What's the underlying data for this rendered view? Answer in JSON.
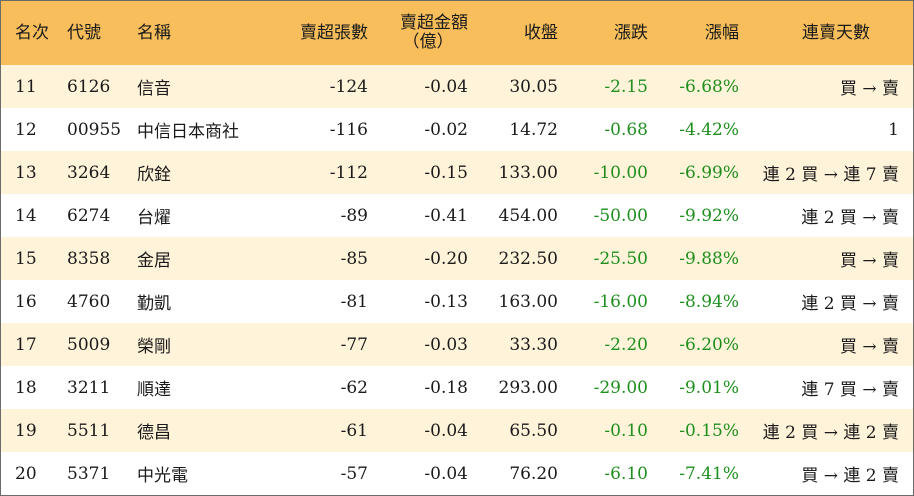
{
  "header": {
    "rank": "名次",
    "code": "代號",
    "name": "名稱",
    "net_sell_lots": "賣超張數",
    "net_sell_amount_line1": "賣超金額",
    "net_sell_amount_line2": "（億）",
    "close": "收盤",
    "change": "漲跌",
    "change_pct": "漲幅",
    "streak": "連賣天數"
  },
  "colors": {
    "header_bg": "#f7be5b",
    "stripe_bg": "#fff3d9",
    "positive_green": "#1e8f1e"
  },
  "rows": [
    {
      "rank": "11",
      "code": "6126",
      "name": "信音",
      "lots": "-124",
      "amount": "-0.04",
      "close": "30.05",
      "change": "-2.15",
      "pct": "-6.68%",
      "streak": "買 → 賣"
    },
    {
      "rank": "12",
      "code": "00955",
      "name": "中信日本商社",
      "lots": "-116",
      "amount": "-0.02",
      "close": "14.72",
      "change": "-0.68",
      "pct": "-4.42%",
      "streak": "1"
    },
    {
      "rank": "13",
      "code": "3264",
      "name": "欣銓",
      "lots": "-112",
      "amount": "-0.15",
      "close": "133.00",
      "change": "-10.00",
      "pct": "-6.99%",
      "streak": "連 2 買 → 連 7 賣"
    },
    {
      "rank": "14",
      "code": "6274",
      "name": "台燿",
      "lots": "-89",
      "amount": "-0.41",
      "close": "454.00",
      "change": "-50.00",
      "pct": "-9.92%",
      "streak": "連 2 買 → 賣"
    },
    {
      "rank": "15",
      "code": "8358",
      "name": "金居",
      "lots": "-85",
      "amount": "-0.20",
      "close": "232.50",
      "change": "-25.50",
      "pct": "-9.88%",
      "streak": "買 → 賣"
    },
    {
      "rank": "16",
      "code": "4760",
      "name": "勤凱",
      "lots": "-81",
      "amount": "-0.13",
      "close": "163.00",
      "change": "-16.00",
      "pct": "-8.94%",
      "streak": "連 2 買 → 賣"
    },
    {
      "rank": "17",
      "code": "5009",
      "name": "榮剛",
      "lots": "-77",
      "amount": "-0.03",
      "close": "33.30",
      "change": "-2.20",
      "pct": "-6.20%",
      "streak": "買 → 賣"
    },
    {
      "rank": "18",
      "code": "3211",
      "name": "順達",
      "lots": "-62",
      "amount": "-0.18",
      "close": "293.00",
      "change": "-29.00",
      "pct": "-9.01%",
      "streak": "連 7 買 → 賣"
    },
    {
      "rank": "19",
      "code": "5511",
      "name": "德昌",
      "lots": "-61",
      "amount": "-0.04",
      "close": "65.50",
      "change": "-0.10",
      "pct": "-0.15%",
      "streak": "連 2 買 → 連 2 賣"
    },
    {
      "rank": "20",
      "code": "5371",
      "name": "中光電",
      "lots": "-57",
      "amount": "-0.04",
      "close": "76.20",
      "change": "-6.10",
      "pct": "-7.41%",
      "streak": "買 → 連 2 賣"
    }
  ]
}
